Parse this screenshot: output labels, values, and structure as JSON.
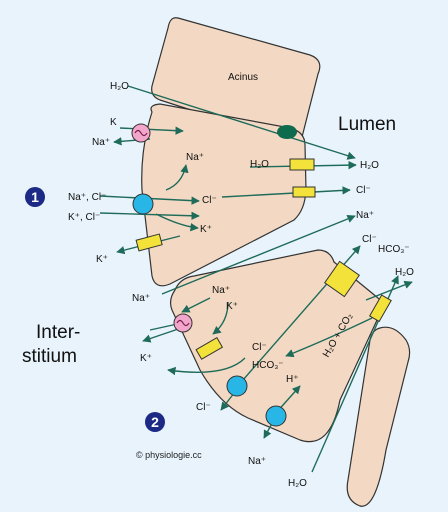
{
  "regions": {
    "acinus": "Acinus",
    "lumen": "Lumen",
    "interstitium_line1": "Inter-",
    "interstitium_line2": "stitium"
  },
  "badges": {
    "cell1": "1",
    "cell2": "2"
  },
  "credit": "© physiologie.cc",
  "cell1_labels": {
    "h2o_acinus": "H₂O",
    "k_in": "K",
    "na_out": "Na⁺",
    "na_mid": "Na⁺",
    "h2o_channel_left": "H₂O",
    "h2o_lumen": "H₂O",
    "na_cl": "Na⁺, Cl⁻",
    "cl_mid": "Cl⁻",
    "cl_lumen": "Cl⁻",
    "k_cl": "K⁺, Cl⁻",
    "k_mid": "K⁺",
    "k_out": "K⁺"
  },
  "cell2_labels": {
    "na_lumen": "Na⁺",
    "na_out": "Na⁺",
    "na_in": "Na⁺",
    "k_in": "K⁺",
    "k_out": "K⁺",
    "cl_lumen": "Cl⁻",
    "hco3_lumen": "HCO₃⁻",
    "h2o_right": "H₂O",
    "h2o_co2": "H₂O + CO₂",
    "cl_mid": "Cl⁻",
    "hco3_mid": "HCO₃⁻",
    "h_plus": "H⁺",
    "cl_out": "Cl⁻",
    "na_bottom": "Na⁺",
    "h2o_bottom": "H₂O"
  },
  "colors": {
    "background": "#e8f3fb",
    "cell_fill": "#f3d9c3",
    "cell_stroke": "#333333",
    "arrow": "#1f6b5a",
    "exchanger": "#f3a6cc",
    "cotransporter": "#27b6e6",
    "channel": "#f2e23a",
    "aquaporin": "#0f6b4e",
    "badge": "#1c2a86"
  }
}
